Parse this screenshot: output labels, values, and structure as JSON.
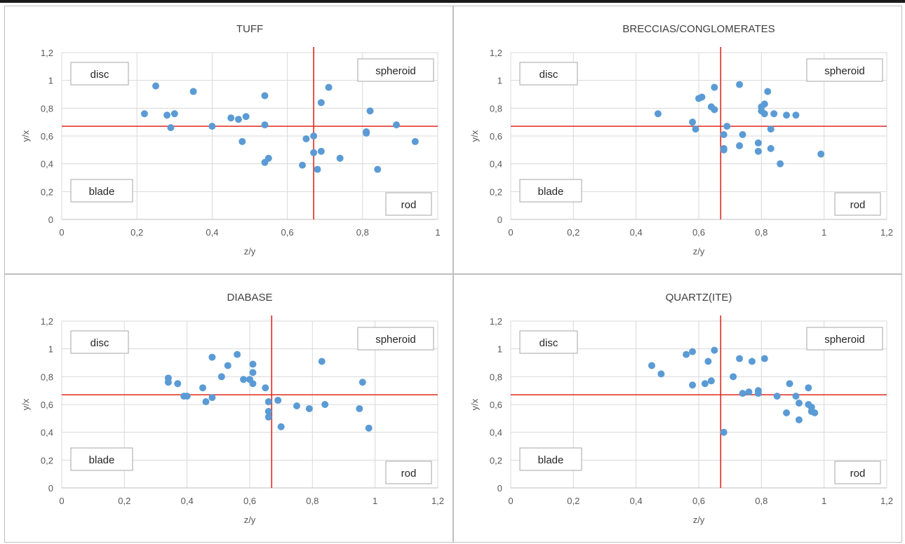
{
  "chart_data": [
    {
      "type": "scatter",
      "title": "TUFF",
      "xlabel": "z/y",
      "ylabel": "y/x",
      "xlim": [
        0,
        1
      ],
      "ylim": [
        0,
        1.2
      ],
      "xticks": [
        0,
        0.2,
        0.4,
        0.6,
        0.8,
        1
      ],
      "xtick_labels": [
        "0",
        "0,2",
        "0,4",
        "0,6",
        "0,8",
        "1"
      ],
      "yticks": [
        0,
        0.2,
        0.4,
        0.6,
        0.8,
        1,
        1.2
      ],
      "ytick_labels": [
        "0",
        "0,2",
        "0,4",
        "0,6",
        "0,8",
        "1",
        "1,2"
      ],
      "grid": true,
      "reference_lines": {
        "x": 0.67,
        "y": 0.67,
        "color": "#e0281e"
      },
      "marker_color": "#5b9bd5",
      "annotations": [
        {
          "text": "disc",
          "corner": "top-left"
        },
        {
          "text": "spheroid",
          "corner": "top-right"
        },
        {
          "text": "blade",
          "corner": "bottom-left"
        },
        {
          "text": "rod",
          "corner": "bottom-right"
        }
      ],
      "points": [
        [
          0.22,
          0.76
        ],
        [
          0.25,
          0.96
        ],
        [
          0.28,
          0.75
        ],
        [
          0.29,
          0.66
        ],
        [
          0.3,
          0.76
        ],
        [
          0.35,
          0.92
        ],
        [
          0.4,
          0.67
        ],
        [
          0.45,
          0.73
        ],
        [
          0.47,
          0.72
        ],
        [
          0.48,
          0.56
        ],
        [
          0.49,
          0.74
        ],
        [
          0.54,
          0.89
        ],
        [
          0.54,
          0.68
        ],
        [
          0.54,
          0.41
        ],
        [
          0.55,
          0.44
        ],
        [
          0.64,
          0.39
        ],
        [
          0.65,
          0.58
        ],
        [
          0.67,
          0.6
        ],
        [
          0.67,
          0.48
        ],
        [
          0.68,
          0.36
        ],
        [
          0.69,
          0.84
        ],
        [
          0.69,
          0.49
        ],
        [
          0.71,
          0.95
        ],
        [
          0.74,
          0.44
        ],
        [
          0.81,
          0.63
        ],
        [
          0.81,
          0.62
        ],
        [
          0.82,
          0.78
        ],
        [
          0.84,
          0.36
        ],
        [
          0.89,
          0.68
        ],
        [
          0.94,
          0.56
        ]
      ]
    },
    {
      "type": "scatter",
      "title": "BRECCIAS/CONGLOMERATES",
      "xlabel": "z/y",
      "ylabel": "y/x",
      "xlim": [
        0,
        1.2
      ],
      "ylim": [
        0,
        1.2
      ],
      "xticks": [
        0,
        0.2,
        0.4,
        0.6,
        0.8,
        1,
        1.2
      ],
      "xtick_labels": [
        "0",
        "0,2",
        "0,4",
        "0,6",
        "0,8",
        "1",
        "1,2"
      ],
      "yticks": [
        0,
        0.2,
        0.4,
        0.6,
        0.8,
        1,
        1.2
      ],
      "ytick_labels": [
        "0",
        "0,2",
        "0,4",
        "0,6",
        "0,8",
        "1",
        "1,2"
      ],
      "grid": true,
      "reference_lines": {
        "x": 0.67,
        "y": 0.67,
        "color": "#e0281e"
      },
      "marker_color": "#5b9bd5",
      "annotations": [
        {
          "text": "disc",
          "corner": "top-left"
        },
        {
          "text": "spheroid",
          "corner": "top-right"
        },
        {
          "text": "blade",
          "corner": "bottom-left"
        },
        {
          "text": "rod",
          "corner": "bottom-right"
        }
      ],
      "points": [
        [
          0.47,
          0.76
        ],
        [
          0.58,
          0.7
        ],
        [
          0.59,
          0.65
        ],
        [
          0.6,
          0.87
        ],
        [
          0.61,
          0.88
        ],
        [
          0.64,
          0.81
        ],
        [
          0.65,
          0.95
        ],
        [
          0.65,
          0.79
        ],
        [
          0.68,
          0.61
        ],
        [
          0.68,
          0.51
        ],
        [
          0.68,
          0.5
        ],
        [
          0.69,
          0.67
        ],
        [
          0.73,
          0.97
        ],
        [
          0.73,
          0.53
        ],
        [
          0.74,
          0.61
        ],
        [
          0.79,
          0.55
        ],
        [
          0.79,
          0.49
        ],
        [
          0.8,
          0.81
        ],
        [
          0.8,
          0.78
        ],
        [
          0.81,
          0.83
        ],
        [
          0.81,
          0.76
        ],
        [
          0.82,
          0.92
        ],
        [
          0.83,
          0.65
        ],
        [
          0.83,
          0.51
        ],
        [
          0.84,
          0.76
        ],
        [
          0.86,
          0.4
        ],
        [
          0.88,
          0.75
        ],
        [
          0.91,
          0.75
        ],
        [
          0.99,
          0.47
        ]
      ]
    },
    {
      "type": "scatter",
      "title": "DIABASE",
      "xlabel": "z/y",
      "ylabel": "y/x",
      "xlim": [
        0,
        1.2
      ],
      "ylim": [
        0,
        1.2
      ],
      "xticks": [
        0,
        0.2,
        0.4,
        0.6,
        0.8,
        1,
        1.2
      ],
      "xtick_labels": [
        "0",
        "0,2",
        "0,4",
        "0,6",
        "0,8",
        "1",
        "1,2"
      ],
      "yticks": [
        0,
        0.2,
        0.4,
        0.6,
        0.8,
        1,
        1.2
      ],
      "ytick_labels": [
        "0",
        "0,2",
        "0,4",
        "0,6",
        "0,8",
        "1",
        "1,2"
      ],
      "grid": true,
      "reference_lines": {
        "x": 0.67,
        "y": 0.67,
        "color": "#e0281e"
      },
      "marker_color": "#5b9bd5",
      "annotations": [
        {
          "text": "disc",
          "corner": "top-left"
        },
        {
          "text": "spheroid",
          "corner": "top-right"
        },
        {
          "text": "blade",
          "corner": "bottom-left"
        },
        {
          "text": "rod",
          "corner": "bottom-right"
        }
      ],
      "points": [
        [
          0.34,
          0.79
        ],
        [
          0.34,
          0.76
        ],
        [
          0.37,
          0.75
        ],
        [
          0.39,
          0.66
        ],
        [
          0.4,
          0.66
        ],
        [
          0.45,
          0.72
        ],
        [
          0.46,
          0.62
        ],
        [
          0.48,
          0.94
        ],
        [
          0.48,
          0.65
        ],
        [
          0.51,
          0.8
        ],
        [
          0.53,
          0.88
        ],
        [
          0.56,
          0.96
        ],
        [
          0.58,
          0.78
        ],
        [
          0.6,
          0.78
        ],
        [
          0.61,
          0.89
        ],
        [
          0.61,
          0.83
        ],
        [
          0.61,
          0.75
        ],
        [
          0.65,
          0.72
        ],
        [
          0.66,
          0.62
        ],
        [
          0.66,
          0.55
        ],
        [
          0.66,
          0.51
        ],
        [
          0.69,
          0.63
        ],
        [
          0.7,
          0.44
        ],
        [
          0.75,
          0.59
        ],
        [
          0.79,
          0.57
        ],
        [
          0.83,
          0.91
        ],
        [
          0.84,
          0.6
        ],
        [
          0.95,
          0.57
        ],
        [
          0.96,
          0.76
        ],
        [
          0.98,
          0.43
        ]
      ]
    },
    {
      "type": "scatter",
      "title": "QUARTZ(ITE)",
      "xlabel": "z/y",
      "ylabel": "y/x",
      "xlim": [
        0,
        1.2
      ],
      "ylim": [
        0,
        1.2
      ],
      "xticks": [
        0,
        0.2,
        0.4,
        0.6,
        0.8,
        1,
        1.2
      ],
      "xtick_labels": [
        "0",
        "0,2",
        "0,4",
        "0,6",
        "0,8",
        "1",
        "1,2"
      ],
      "yticks": [
        0,
        0.2,
        0.4,
        0.6,
        0.8,
        1,
        1.2
      ],
      "ytick_labels": [
        "0",
        "0,2",
        "0,4",
        "0,6",
        "0,8",
        "1",
        "1,2"
      ],
      "grid": true,
      "reference_lines": {
        "x": 0.67,
        "y": 0.67,
        "color": "#e0281e"
      },
      "marker_color": "#5b9bd5",
      "annotations": [
        {
          "text": "disc",
          "corner": "top-left"
        },
        {
          "text": "spheroid",
          "corner": "top-right"
        },
        {
          "text": "blade",
          "corner": "bottom-left"
        },
        {
          "text": "rod",
          "corner": "bottom-right"
        }
      ],
      "points": [
        [
          0.45,
          0.88
        ],
        [
          0.48,
          0.82
        ],
        [
          0.56,
          0.96
        ],
        [
          0.58,
          0.98
        ],
        [
          0.58,
          0.74
        ],
        [
          0.62,
          0.75
        ],
        [
          0.63,
          0.91
        ],
        [
          0.64,
          0.77
        ],
        [
          0.65,
          0.99
        ],
        [
          0.68,
          0.4
        ],
        [
          0.71,
          0.8
        ],
        [
          0.73,
          0.93
        ],
        [
          0.74,
          0.68
        ],
        [
          0.76,
          0.69
        ],
        [
          0.77,
          0.91
        ],
        [
          0.79,
          0.7
        ],
        [
          0.79,
          0.68
        ],
        [
          0.81,
          0.93
        ],
        [
          0.85,
          0.66
        ],
        [
          0.88,
          0.54
        ],
        [
          0.89,
          0.75
        ],
        [
          0.91,
          0.66
        ],
        [
          0.92,
          0.61
        ],
        [
          0.92,
          0.49
        ],
        [
          0.95,
          0.72
        ],
        [
          0.95,
          0.6
        ],
        [
          0.96,
          0.58
        ],
        [
          0.96,
          0.55
        ],
        [
          0.97,
          0.54
        ]
      ]
    }
  ]
}
